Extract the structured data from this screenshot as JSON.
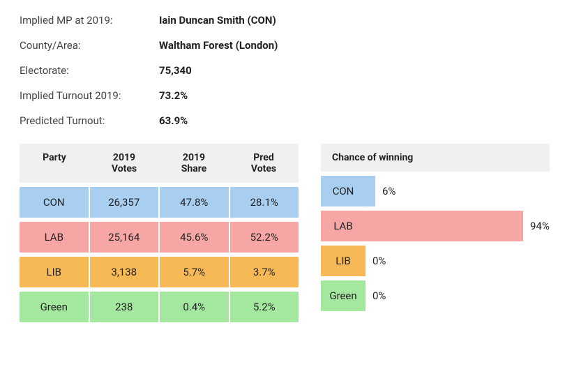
{
  "info": {
    "rows": [
      {
        "label": "Implied MP at 2019:",
        "value": "Iain Duncan Smith  (CON)"
      },
      {
        "label": "County/Area:",
        "value": "Waltham Forest (London)"
      },
      {
        "label": "Electorate:",
        "value": "75,340"
      },
      {
        "label": "Implied Turnout 2019:",
        "value": "73.2%"
      },
      {
        "label": "Predicted Turnout:",
        "value": "63.9%"
      }
    ]
  },
  "votes_table": {
    "headers": [
      "Party",
      "2019 Votes",
      "2019 Share",
      "Pred Votes"
    ],
    "rows": [
      {
        "party": "CON",
        "votes": "26,357",
        "share": "47.8%",
        "pred": "28.1%",
        "color": "#a8cef0"
      },
      {
        "party": "LAB",
        "votes": "25,164",
        "share": "45.6%",
        "pred": "52.2%",
        "color": "#f7a6a6"
      },
      {
        "party": "LIB",
        "votes": "3,138",
        "share": "5.7%",
        "pred": "3.7%",
        "color": "#f7b955"
      },
      {
        "party": "Green",
        "votes": "238",
        "share": "0.4%",
        "pred": "5.2%",
        "color": "#a4e79f"
      }
    ]
  },
  "win_table": {
    "header": "Chance of winning",
    "bar_max_width": 240,
    "rows": [
      {
        "party": "CON",
        "pct": 6,
        "pct_label": "6%",
        "color": "#a8cef0"
      },
      {
        "party": "LAB",
        "pct": 94,
        "pct_label": "94%",
        "color": "#f7a6a6"
      },
      {
        "party": "LIB",
        "pct": 0,
        "pct_label": "0%",
        "color": "#f7b955"
      },
      {
        "party": "Green",
        "pct": 0,
        "pct_label": "0%",
        "color": "#a4e79f"
      }
    ]
  },
  "colors": {
    "header_bg": "#f0f0f2",
    "text": "#222222"
  }
}
